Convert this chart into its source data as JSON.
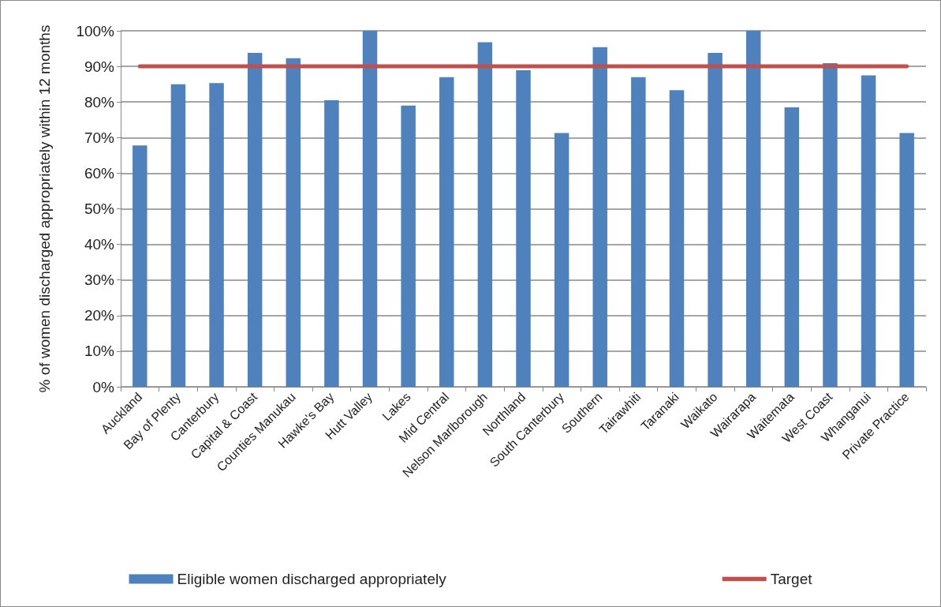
{
  "chart_data": {
    "type": "bar",
    "ylabel": "% of women discharged appropriately within 12 months",
    "categories": [
      "Auckland",
      "Bay of Plenty",
      "Canterbury",
      "Capital & Coast",
      "Counties Manukau",
      "Hawke's Bay",
      "Hutt Valley",
      "Lakes",
      "Mid Central",
      "Nelson Marlborough",
      "Northland",
      "South Canterbury",
      "Southern",
      "Tairawhiti",
      "Taranaki",
      "Waikato",
      "Wairarapa",
      "Waitemata",
      "West Coast",
      "Whanganui",
      "Private Practice"
    ],
    "series": [
      {
        "name": "Eligible women discharged appropriately",
        "color": "#4f81bd",
        "values": [
          67.8,
          85,
          85.3,
          93.8,
          92.3,
          80.5,
          100,
          79,
          87,
          96.8,
          88.9,
          71.3,
          95.4,
          87,
          83.3,
          93.8,
          100,
          78.5,
          90.9,
          87.5,
          71.3
        ]
      },
      {
        "name": "Target",
        "type": "line",
        "color": "#c0504d",
        "values": [
          90,
          90,
          90,
          90,
          90,
          90,
          90,
          90,
          90,
          90,
          90,
          90,
          90,
          90,
          90,
          90,
          90,
          90,
          90,
          90,
          90
        ]
      }
    ],
    "ylim": [
      0,
      100
    ],
    "yticks": [
      {
        "value": 0,
        "label": "0%"
      },
      {
        "value": 10,
        "label": "10%"
      },
      {
        "value": 20,
        "label": "20%"
      },
      {
        "value": 30,
        "label": "30%"
      },
      {
        "value": 40,
        "label": "40%"
      },
      {
        "value": 50,
        "label": "50%"
      },
      {
        "value": 60,
        "label": "60%"
      },
      {
        "value": 70,
        "label": "70%"
      },
      {
        "value": 80,
        "label": "80%"
      },
      {
        "value": 90,
        "label": "90%"
      },
      {
        "value": 100,
        "label": "100%"
      }
    ],
    "grid": "y",
    "legend": "bottom",
    "marker": "none"
  }
}
